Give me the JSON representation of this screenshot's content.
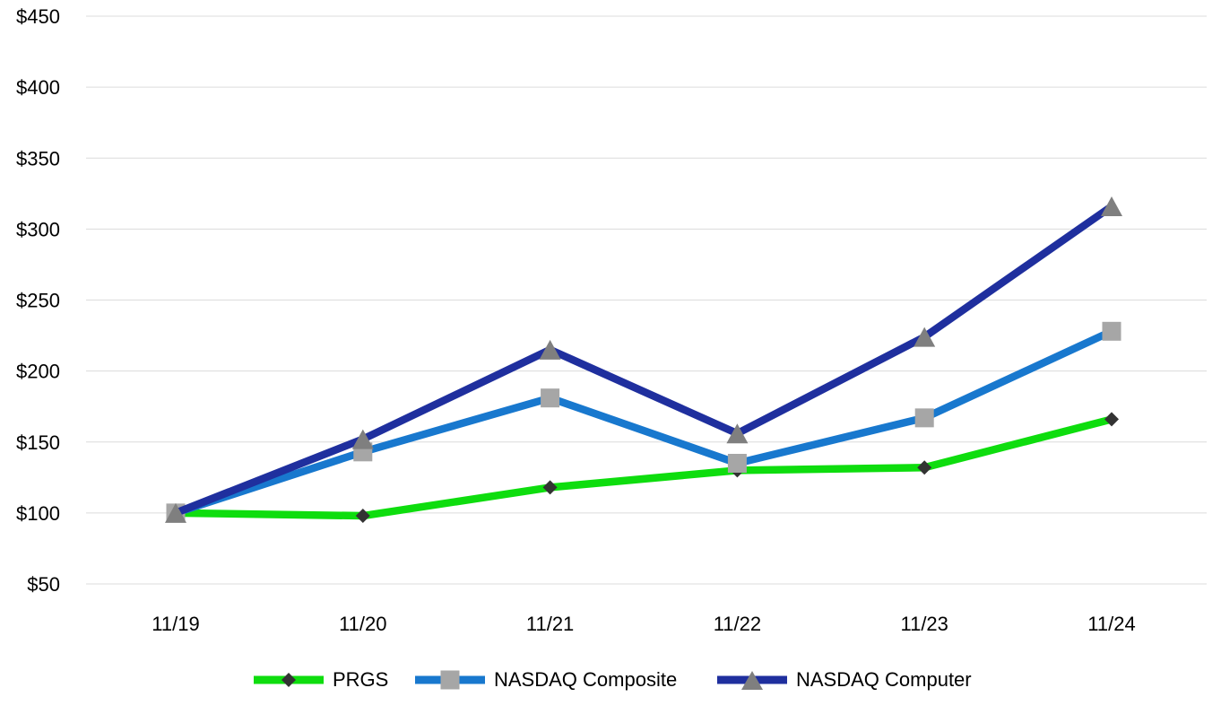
{
  "chart_data": {
    "type": "line",
    "title": "",
    "categories": [
      "11/19",
      "11/20",
      "11/21",
      "11/22",
      "11/23",
      "11/24"
    ],
    "series": [
      {
        "name": "PRGS",
        "line_color": "#0edd0e",
        "marker": "diamond",
        "marker_color": "#333333",
        "values": [
          100,
          98,
          118,
          130,
          132,
          166
        ]
      },
      {
        "name": "NASDAQ Composite",
        "line_color": "#1878ce",
        "marker": "square",
        "marker_color": "#a6a6a6",
        "values": [
          100,
          143,
          181,
          135,
          167,
          228
        ]
      },
      {
        "name": "NASDAQ Computer",
        "line_color": "#1f2f9e",
        "marker": "triangle",
        "marker_color": "#7f7f7f",
        "values": [
          100,
          152,
          215,
          156,
          224,
          316
        ]
      }
    ],
    "y_axis": {
      "min": 50,
      "max": 450,
      "step": 50,
      "tick_prefix": "$",
      "tick_labels": [
        "$450",
        "$400",
        "$350",
        "$300",
        "$250",
        "$200",
        "$150",
        "$100",
        "$50"
      ]
    },
    "x_axis": {
      "tick_labels": [
        "11/19",
        "11/20",
        "11/21",
        "11/22",
        "11/23",
        "11/24"
      ]
    },
    "grid": "horizontal",
    "grid_color": "#dcdcdc",
    "text_color": "#000000",
    "legend_position": "bottom"
  }
}
